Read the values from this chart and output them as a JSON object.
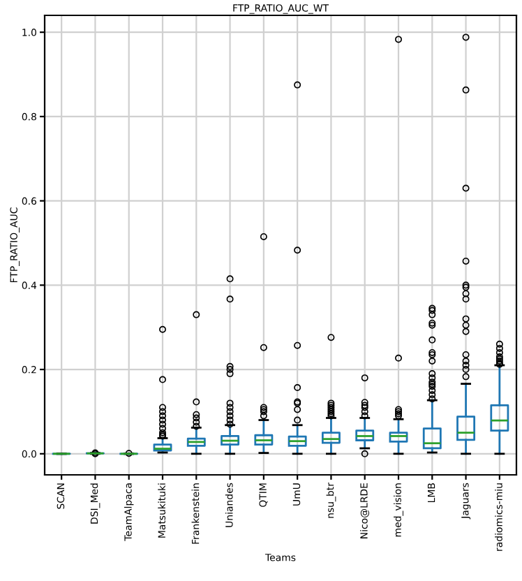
{
  "chart_data": {
    "type": "box",
    "title": "FTP_RATIO_AUC_WT",
    "xlabel": "Teams",
    "ylabel": "FTP_RATIO_AUC",
    "grid": true,
    "legend": false,
    "marker": "circle",
    "categories": [
      "SCAN",
      "DSI_Med",
      "TeamAlpaca",
      "Matsukituki",
      "Frankenstein",
      "Uniandes",
      "QTIM",
      "UmU",
      "nsu_btr",
      "Nico@LRDE",
      "med_vision",
      "LMB",
      "Jaguars",
      "radiomics-miu"
    ],
    "ylim": [
      -0.05,
      1.04
    ],
    "yticks": [
      {
        "value": 0,
        "label": "0.0"
      },
      {
        "value": 0.2,
        "label": "0.2"
      },
      {
        "value": 0.4,
        "label": "0.4"
      },
      {
        "value": 0.6,
        "label": "0.6"
      },
      {
        "value": 0.8,
        "label": "0.8"
      },
      {
        "value": 1,
        "label": "1.0"
      }
    ],
    "series": [
      {
        "color": "#1f77b4",
        "boxes": [
          {
            "low": 0,
            "q1": 0,
            "median": 0,
            "q3": 0,
            "high": 0
          },
          {
            "low": 0,
            "q1": 0.001,
            "median": 0.001,
            "q3": 0.001,
            "high": 0.002,
            "outliers": [
              0.002,
              0.0
            ]
          },
          {
            "low": 0,
            "q1": 0,
            "median": 0,
            "q3": 0,
            "high": 0,
            "outliers": [
              0.001
            ]
          },
          {
            "low": 0.003,
            "q1": 0.008,
            "median": 0.012,
            "q3": 0.022,
            "high": 0.037,
            "outliers": [
              0.295,
              0.176,
              0.11,
              0.1,
              0.09,
              0.08,
              0.07,
              0.06,
              0.05,
              0.045,
              0.042
            ]
          },
          {
            "low": 0,
            "q1": 0.019,
            "median": 0.028,
            "q3": 0.036,
            "high": 0.062,
            "outliers": [
              0.33,
              0.123,
              0.093,
              0.085,
              0.075,
              0.065
            ]
          },
          {
            "low": 0,
            "q1": 0.022,
            "median": 0.031,
            "q3": 0.042,
            "high": 0.068,
            "outliers": [
              0.415,
              0.367,
              0.207,
              0.2,
              0.19,
              0.12,
              0.11,
              0.1,
              0.09,
              0.08,
              0.07
            ]
          },
          {
            "low": 0.002,
            "q1": 0.022,
            "median": 0.032,
            "q3": 0.044,
            "high": 0.08,
            "outliers": [
              0.515,
              0.252,
              0.11,
              0.105,
              0.1,
              0.09
            ]
          },
          {
            "low": 0,
            "q1": 0.019,
            "median": 0.03,
            "q3": 0.041,
            "high": 0.068,
            "outliers": [
              0.875,
              0.483,
              0.257,
              0.157,
              0.123,
              0.12,
              0.105,
              0.08
            ]
          },
          {
            "low": 0,
            "q1": 0.026,
            "median": 0.035,
            "q3": 0.05,
            "high": 0.085,
            "outliers": [
              0.276,
              0.12,
              0.115,
              0.11,
              0.105,
              0.1,
              0.095,
              0.09
            ]
          },
          {
            "low": 0.013,
            "q1": 0.032,
            "median": 0.042,
            "q3": 0.055,
            "high": 0.085,
            "outliers": [
              0.18,
              0.122,
              0.115,
              0.11,
              0.1,
              0.09,
              0.0
            ]
          },
          {
            "low": 0,
            "q1": 0.029,
            "median": 0.042,
            "q3": 0.05,
            "high": 0.082,
            "outliers": [
              0.983,
              0.227,
              0.105,
              0.1,
              0.095,
              0.09
            ]
          },
          {
            "low": 0.003,
            "q1": 0.013,
            "median": 0.025,
            "q3": 0.06,
            "high": 0.127,
            "outliers": [
              0.345,
              0.34,
              0.33,
              0.31,
              0.305,
              0.27,
              0.24,
              0.235,
              0.22,
              0.19,
              0.18,
              0.17,
              0.165,
              0.16,
              0.15,
              0.14,
              0.13
            ]
          },
          {
            "low": 0,
            "q1": 0.033,
            "median": 0.05,
            "q3": 0.088,
            "high": 0.166,
            "outliers": [
              0.988,
              0.863,
              0.63,
              0.457,
              0.4,
              0.395,
              0.38,
              0.367,
              0.32,
              0.305,
              0.29,
              0.235,
              0.22,
              0.21,
              0.2,
              0.183
            ]
          },
          {
            "low": 0,
            "q1": 0.055,
            "median": 0.079,
            "q3": 0.115,
            "high": 0.21,
            "outliers": [
              0.26,
              0.25,
              0.24,
              0.23,
              0.225,
              0.22,
              0.215,
              0.212
            ]
          }
        ]
      }
    ]
  }
}
